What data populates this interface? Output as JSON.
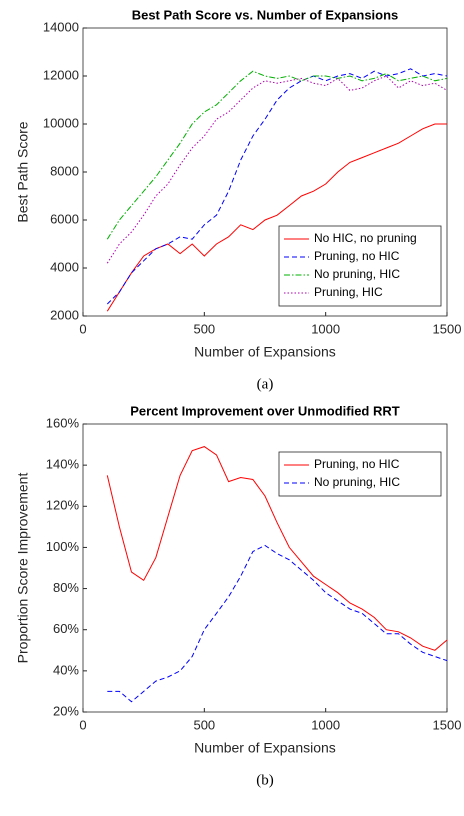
{
  "chart_data": [
    {
      "type": "line",
      "title": "Best Path Score vs. Number of Expansions",
      "xlabel": "Number of Expansions",
      "ylabel": "Best Path Score",
      "caption": "(a)",
      "x": [
        100,
        150,
        200,
        250,
        300,
        350,
        400,
        450,
        500,
        550,
        600,
        650,
        700,
        750,
        800,
        850,
        900,
        950,
        1000,
        1050,
        1100,
        1150,
        1200,
        1250,
        1300,
        1350,
        1400,
        1450,
        1500
      ],
      "series": [
        {
          "name": "No HIC, no pruning",
          "color": "#ff0000",
          "style": "solid",
          "values": [
            2200,
            3000,
            3800,
            4500,
            4800,
            5000,
            4600,
            5000,
            4500,
            5000,
            5300,
            5800,
            5600,
            6000,
            6200,
            6600,
            7000,
            7200,
            7500,
            8000,
            8400,
            8600,
            8800,
            9000,
            9200,
            9500,
            9800,
            10000,
            10000
          ]
        },
        {
          "name": "Pruning, no HIC",
          "color": "#0000ff",
          "style": "dashed",
          "values": [
            2500,
            3000,
            3800,
            4300,
            4800,
            5000,
            5300,
            5200,
            5800,
            6200,
            7200,
            8500,
            9500,
            10200,
            11000,
            11500,
            11800,
            12000,
            11800,
            12000,
            12100,
            11900,
            12200,
            12000,
            12100,
            12300,
            12000,
            12100,
            12000
          ]
        },
        {
          "name": "No pruning, HIC",
          "color": "#00b000",
          "style": "dashdot",
          "values": [
            5200,
            6000,
            6600,
            7200,
            7800,
            8500,
            9200,
            10000,
            10500,
            10800,
            11300,
            11800,
            12200,
            12000,
            11900,
            12000,
            11800,
            12000,
            12000,
            11900,
            12000,
            11800,
            11900,
            12100,
            11800,
            11900,
            12000,
            11800,
            11900
          ]
        },
        {
          "name": "Pruning, HIC",
          "color": "#b000b0",
          "style": "dotted",
          "values": [
            4200,
            5000,
            5500,
            6200,
            7000,
            7500,
            8300,
            9000,
            9500,
            10200,
            10500,
            11000,
            11500,
            11800,
            11700,
            11800,
            11900,
            11700,
            11600,
            11900,
            11400,
            11500,
            11800,
            12000,
            11500,
            11800,
            11600,
            11700,
            11400
          ]
        }
      ],
      "xlim": [
        0,
        1500
      ],
      "xticks": [
        0,
        500,
        1000,
        1500
      ],
      "ylim": [
        2000,
        14000
      ],
      "yticks": [
        2000,
        4000,
        6000,
        8000,
        10000,
        12000,
        14000
      ],
      "grid": false,
      "legend": "lower right"
    },
    {
      "type": "line",
      "title": "Percent Improvement over Unmodified RRT",
      "xlabel": "Number of Expansions",
      "ylabel": "Proportion Score Improvement",
      "caption": "(b)",
      "x": [
        100,
        150,
        200,
        250,
        300,
        350,
        400,
        450,
        500,
        550,
        600,
        650,
        700,
        750,
        800,
        850,
        900,
        950,
        1000,
        1050,
        1100,
        1150,
        1200,
        1250,
        1300,
        1350,
        1400,
        1450,
        1500
      ],
      "series": [
        {
          "name": "Pruning, no HIC",
          "color": "#ff0000",
          "style": "solid",
          "values": [
            135,
            110,
            88,
            84,
            95,
            115,
            135,
            147,
            149,
            145,
            132,
            134,
            133,
            125,
            112,
            100,
            93,
            86,
            82,
            78,
            73,
            70,
            66,
            60,
            59,
            56,
            52,
            50,
            55
          ]
        },
        {
          "name": "No pruning, HIC",
          "color": "#0000ff",
          "style": "dashed",
          "values": [
            30,
            30,
            25,
            30,
            35,
            37,
            40,
            47,
            60,
            68,
            76,
            86,
            98,
            101,
            97,
            94,
            89,
            84,
            78,
            74,
            70,
            68,
            63,
            58,
            58,
            53,
            49,
            47,
            45
          ]
        }
      ],
      "xlim": [
        0,
        1500
      ],
      "xticks": [
        0,
        500,
        1000,
        1500
      ],
      "ylim": [
        20,
        160
      ],
      "yticks": [
        {
          "value": 20,
          "label": "20%"
        },
        {
          "value": 40,
          "label": "40%"
        },
        {
          "value": 60,
          "label": "60%"
        },
        {
          "value": 80,
          "label": "80%"
        },
        {
          "value": 100,
          "label": "100%"
        },
        {
          "value": 120,
          "label": "120%"
        },
        {
          "value": 140,
          "label": "140%"
        },
        {
          "value": 160,
          "label": "160%"
        }
      ],
      "grid": false,
      "legend": "upper right"
    }
  ]
}
